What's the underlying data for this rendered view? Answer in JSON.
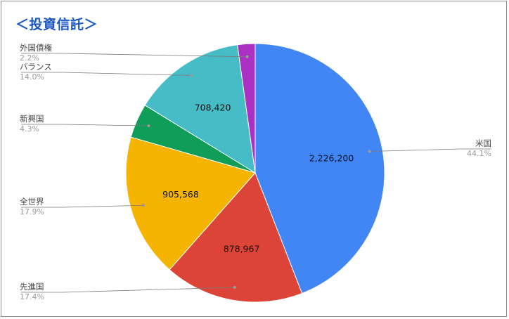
{
  "chart_data": {
    "type": "pie",
    "title": "＜投資信託＞",
    "categories": [
      "米国",
      "先進国",
      "全世界",
      "新興国",
      "バランス",
      "外国債権"
    ],
    "values": [
      2226200,
      878967,
      905568,
      217000,
      708420,
      111000
    ],
    "percent_labels": [
      "44.1%",
      "17.4%",
      "17.9%",
      "4.3%",
      "14.0%",
      "2.2%"
    ],
    "data_labels": [
      "2,226,200",
      "878,967",
      "905,568",
      "",
      "708,420",
      ""
    ],
    "colors": [
      "#4285f4",
      "#db4437",
      "#f4b400",
      "#0f9d58",
      "#46bdc6",
      "#ab30c4"
    ],
    "legend": "none"
  }
}
